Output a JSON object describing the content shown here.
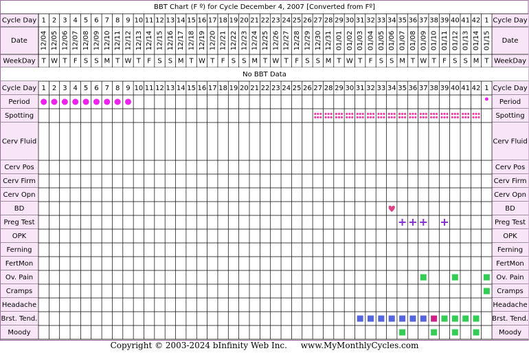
{
  "title": "BBT Chart (F º) for Cycle December 4, 2007  [Converted from Fº]",
  "no_bbt_text": "No BBT Data",
  "footer": {
    "copyright": "Copyright © 2003-2024 bInfinity Web Inc.",
    "site": "www.MyMonthlyCycles.com"
  },
  "colors": {
    "border": "#9a6a9a",
    "header_bg": "#f8e6f8",
    "period": "#ee22ee",
    "spotting": "#ee44aa",
    "heart": "#dd4488",
    "cross": "#8833cc",
    "green": "#33cc55",
    "blue": "#5566dd",
    "magenta": "#cc2288"
  },
  "chart_data": {
    "type": "table",
    "cycle_days": [
      "1",
      "2",
      "3",
      "4",
      "5",
      "6",
      "7",
      "8",
      "9",
      "10",
      "11",
      "12",
      "13",
      "14",
      "15",
      "16",
      "17",
      "18",
      "19",
      "20",
      "21",
      "22",
      "23",
      "24",
      "25",
      "26",
      "27",
      "28",
      "29",
      "30",
      "31",
      "32",
      "33",
      "34",
      "35",
      "36",
      "37",
      "38",
      "39",
      "40",
      "41",
      "42",
      "1"
    ],
    "dates": [
      "12/04",
      "12/05",
      "12/06",
      "12/07",
      "12/08",
      "12/09",
      "12/10",
      "12/11",
      "12/12",
      "12/13",
      "12/14",
      "12/15",
      "12/16",
      "12/17",
      "12/18",
      "12/19",
      "12/20",
      "12/21",
      "12/22",
      "12/23",
      "12/24",
      "12/25",
      "12/26",
      "12/27",
      "12/28",
      "12/29",
      "12/30",
      "12/31",
      "01/01",
      "01/02",
      "01/03",
      "01/04",
      "01/05",
      "01/06",
      "01/07",
      "01/08",
      "01/09",
      "01/10",
      "01/11",
      "01/12",
      "01/13",
      "01/14",
      "01/15"
    ],
    "weekdays": [
      "T",
      "W",
      "T",
      "F",
      "S",
      "S",
      "M",
      "T",
      "W",
      "T",
      "F",
      "S",
      "S",
      "M",
      "T",
      "W",
      "T",
      "F",
      "S",
      "S",
      "M",
      "T",
      "W",
      "T",
      "F",
      "S",
      "S",
      "M",
      "T",
      "W",
      "T",
      "F",
      "S",
      "S",
      "M",
      "T",
      "W",
      "T",
      "F",
      "S",
      "S",
      "M",
      "T"
    ],
    "row_labels": {
      "cycle_day": "Cycle Day",
      "date": "Date",
      "weekday": "WeekDay"
    },
    "rows": [
      {
        "label": "Period",
        "marker": "period-dot",
        "days": [
          1,
          2,
          3,
          4,
          5,
          6,
          7,
          8,
          9
        ],
        "small_days": [
          43
        ]
      },
      {
        "label": "Spotting",
        "marker": "spotting-dots",
        "days": [
          27,
          28,
          29,
          30,
          31,
          32,
          33,
          34,
          35,
          36,
          37,
          38,
          39,
          40,
          41,
          42
        ]
      },
      {
        "label": "Cerv Fluid",
        "marker": "none",
        "days": []
      },
      {
        "label": "Cerv Pos",
        "marker": "none",
        "days": []
      },
      {
        "label": "Cerv Firm",
        "marker": "none",
        "days": []
      },
      {
        "label": "Cerv Opn",
        "marker": "none",
        "days": []
      },
      {
        "label": "BD",
        "marker": "heart",
        "days": [
          34
        ]
      },
      {
        "label": "Preg Test",
        "marker": "cross",
        "days": [
          35,
          36,
          37,
          39
        ]
      },
      {
        "label": "OPK",
        "marker": "none",
        "days": []
      },
      {
        "label": "Ferning",
        "marker": "none",
        "days": []
      },
      {
        "label": "FertMon",
        "marker": "none",
        "days": []
      },
      {
        "label": "Ov. Pain",
        "marker": "square",
        "days": [
          37,
          40,
          43
        ],
        "color_key": "green"
      },
      {
        "label": "Cramps",
        "marker": "square",
        "days": [
          43
        ],
        "color_key": "green"
      },
      {
        "label": "Headache",
        "marker": "none",
        "days": []
      },
      {
        "label": "Brst. Tend.",
        "marker": "square",
        "days": [
          31,
          32,
          33,
          34,
          35,
          36,
          37,
          38,
          39,
          40,
          41,
          42
        ],
        "color_map": {
          "31": "blue",
          "32": "blue",
          "33": "blue",
          "34": "blue",
          "35": "blue",
          "36": "blue",
          "37": "blue",
          "38": "magenta",
          "39": "green",
          "40": "green",
          "41": "green",
          "42": "green"
        }
      },
      {
        "label": "Moody",
        "marker": "square",
        "days": [
          35,
          38,
          40,
          42
        ],
        "color_key": "green"
      }
    ]
  }
}
